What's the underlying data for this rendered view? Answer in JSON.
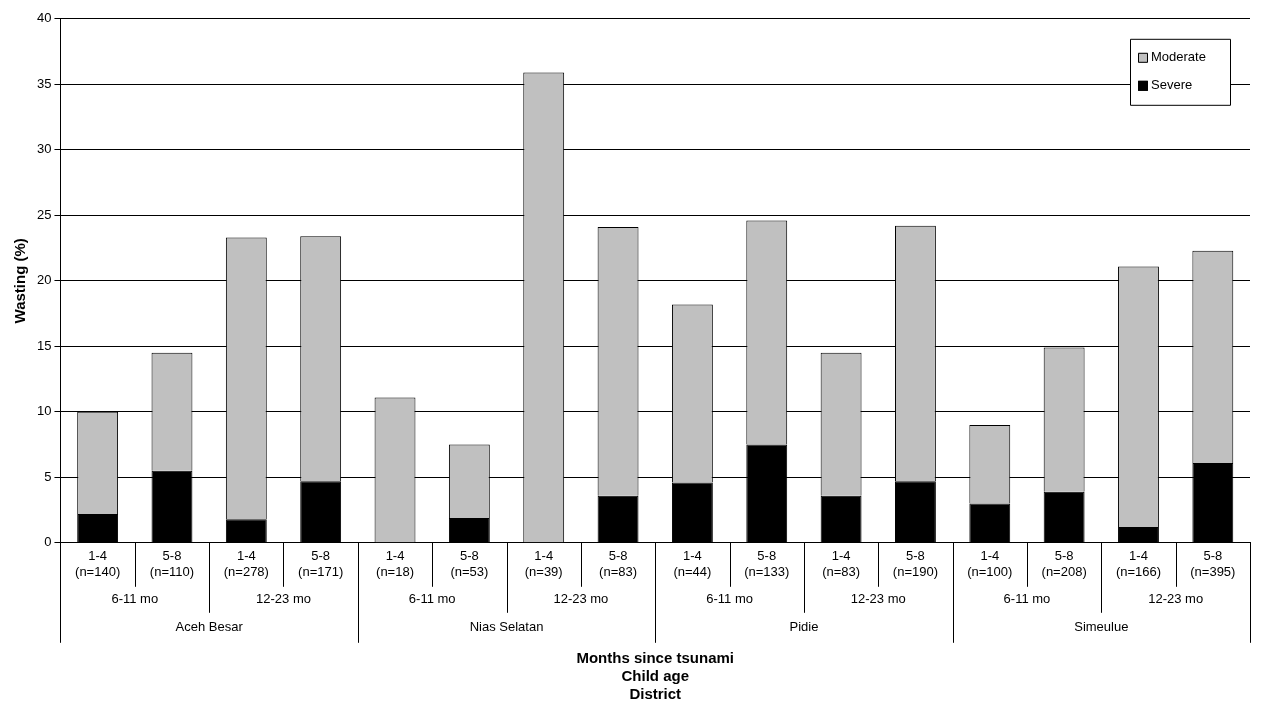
{
  "chart_data": {
    "type": "bar",
    "stacked": true,
    "ylabel": "Wasting (%)",
    "xlabel": "Months since tsunami\nChild age\nDistrict",
    "categories": [
      "1-4\n(n=140)",
      "5-8\n(n=110)",
      "1-4\n(n=278)",
      "5-8\n(n=171)",
      "1-4\n(n=18)",
      "5-8\n(n=53)",
      "1-4\n(n=39)",
      "5-8\n(n=83)",
      "1-4\n(n=44)",
      "5-8\n(n=133)",
      "1-4\n(n=83)",
      "5-8\n(n=190)",
      "1-4\n(n=100)",
      "5-8\n(n=208)",
      "1-4\n(n=166)",
      "5-8\n(n=395)"
    ],
    "series": [
      {
        "name": "Severe",
        "color": "#000000",
        "values": [
          2.2,
          5.5,
          1.8,
          4.7,
          0,
          1.9,
          0,
          3.6,
          4.6,
          7.5,
          3.6,
          4.7,
          3.0,
          3.9,
          1.2,
          6.1
        ]
      },
      {
        "name": "Moderate",
        "color": "#c0c0c0",
        "values": [
          7.8,
          9.0,
          21.5,
          18.7,
          11.1,
          5.6,
          35.9,
          20.5,
          13.6,
          17.1,
          10.9,
          19.5,
          6.0,
          11.0,
          19.9,
          16.2
        ]
      }
    ],
    "annotations": [
      "6-11 mo",
      "12-23 mo",
      "6-11 mo",
      "12-23 mo",
      "6-11 mo",
      "12-23 mo",
      "6-11 mo",
      "12-23 mo",
      "Aceh Besar",
      "Nias Selatan",
      "Pidie",
      "Simeulue"
    ],
    "ylim": [
      0,
      40
    ],
    "yticks": [
      0,
      5,
      10,
      15,
      20,
      25,
      30,
      35,
      40
    ],
    "grid": "y",
    "legend": "top right"
  }
}
